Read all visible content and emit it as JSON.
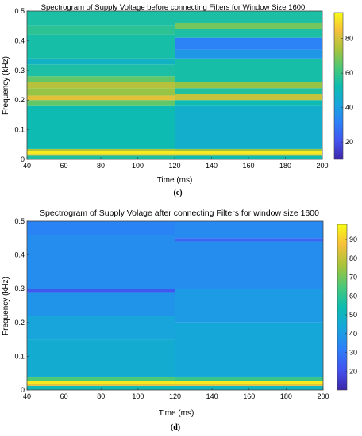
{
  "chart_data": [
    {
      "type": "heatmap",
      "panel_label": "(c)",
      "title": "Spectrogram of Supply Voltage before connecting Filters for Window Size 1600",
      "xlabel": "Time (ms)",
      "ylabel": "Frequency (kHz)",
      "xlim": [
        40,
        200
      ],
      "ylim": [
        0,
        0.5
      ],
      "xticks": [
        "40",
        "60",
        "80",
        "100",
        "120",
        "140",
        "160",
        "180",
        "200"
      ],
      "yticks": [
        "0",
        "0.1",
        "0.2",
        "0.3",
        "0.4",
        "0.5"
      ],
      "colorbar": {
        "ticks": [
          "20",
          "40",
          "60",
          "80"
        ],
        "range": [
          10,
          95
        ]
      },
      "colormap": "parula",
      "segments": [
        {
          "time_range": [
            40,
            120
          ],
          "bands": [
            {
              "f": [
                0.0,
                0.012
              ],
              "v": 55
            },
            {
              "f": [
                0.012,
                0.018
              ],
              "v": 78
            },
            {
              "f": [
                0.018,
                0.027
              ],
              "v": 92
            },
            {
              "f": [
                0.027,
                0.035
              ],
              "v": 75
            },
            {
              "f": [
                0.035,
                0.18
              ],
              "v": 52
            },
            {
              "f": [
                0.18,
                0.2
              ],
              "v": 66
            },
            {
              "f": [
                0.2,
                0.215
              ],
              "v": 82
            },
            {
              "f": [
                0.215,
                0.24
              ],
              "v": 72
            },
            {
              "f": [
                0.24,
                0.26
              ],
              "v": 76
            },
            {
              "f": [
                0.26,
                0.28
              ],
              "v": 66
            },
            {
              "f": [
                0.28,
                0.32
              ],
              "v": 55
            },
            {
              "f": [
                0.32,
                0.34
              ],
              "v": 48
            },
            {
              "f": [
                0.34,
                0.42
              ],
              "v": 54
            },
            {
              "f": [
                0.42,
                0.45
              ],
              "v": 58
            },
            {
              "f": [
                0.45,
                0.5
              ],
              "v": 55
            }
          ]
        },
        {
          "time_range": [
            120,
            200
          ],
          "bands": [
            {
              "f": [
                0.0,
                0.012
              ],
              "v": 52
            },
            {
              "f": [
                0.012,
                0.018
              ],
              "v": 78
            },
            {
              "f": [
                0.018,
                0.027
              ],
              "v": 92
            },
            {
              "f": [
                0.027,
                0.035
              ],
              "v": 72
            },
            {
              "f": [
                0.035,
                0.18
              ],
              "v": 46
            },
            {
              "f": [
                0.18,
                0.2
              ],
              "v": 52
            },
            {
              "f": [
                0.2,
                0.22
              ],
              "v": 78
            },
            {
              "f": [
                0.22,
                0.24
              ],
              "v": 56
            },
            {
              "f": [
                0.24,
                0.26
              ],
              "v": 72
            },
            {
              "f": [
                0.26,
                0.34
              ],
              "v": 54
            },
            {
              "f": [
                0.34,
                0.37
              ],
              "v": 38
            },
            {
              "f": [
                0.37,
                0.41
              ],
              "v": 32
            },
            {
              "f": [
                0.41,
                0.44
              ],
              "v": 55
            },
            {
              "f": [
                0.44,
                0.46
              ],
              "v": 68
            },
            {
              "f": [
                0.46,
                0.5
              ],
              "v": 55
            }
          ]
        }
      ]
    },
    {
      "type": "heatmap",
      "panel_label": "(d)",
      "title": "Spectrogram of Supply Volage after connecting Filters for window size 1600",
      "xlabel": "Time (ms)",
      "ylabel": "Frequency (kHz)",
      "xlim": [
        40,
        200
      ],
      "ylim": [
        0,
        0.5
      ],
      "xticks": [
        "40",
        "60",
        "80",
        "100",
        "120",
        "140",
        "160",
        "180",
        "200"
      ],
      "yticks": [
        "0",
        "0.1",
        "0.2",
        "0.3",
        "0.4",
        "0.5"
      ],
      "colorbar": {
        "ticks": [
          "20",
          "30",
          "40",
          "50",
          "60",
          "70",
          "80",
          "90"
        ],
        "range": [
          10,
          98
        ]
      },
      "colormap": "parula",
      "segments": [
        {
          "time_range": [
            40,
            120
          ],
          "bands": [
            {
              "f": [
                0.0,
                0.012
              ],
              "v": 52
            },
            {
              "f": [
                0.012,
                0.018
              ],
              "v": 85
            },
            {
              "f": [
                0.018,
                0.027
              ],
              "v": 95
            },
            {
              "f": [
                0.027,
                0.04
              ],
              "v": 65
            },
            {
              "f": [
                0.04,
                0.15
              ],
              "v": 46
            },
            {
              "f": [
                0.15,
                0.22
              ],
              "v": 43
            },
            {
              "f": [
                0.22,
                0.29
              ],
              "v": 38
            },
            {
              "f": [
                0.29,
                0.3
              ],
              "v": 22
            },
            {
              "f": [
                0.3,
                0.46
              ],
              "v": 36
            },
            {
              "f": [
                0.46,
                0.5
              ],
              "v": 33
            }
          ]
        },
        {
          "time_range": [
            120,
            200
          ],
          "bands": [
            {
              "f": [
                0.0,
                0.012
              ],
              "v": 50
            },
            {
              "f": [
                0.012,
                0.018
              ],
              "v": 85
            },
            {
              "f": [
                0.018,
                0.027
              ],
              "v": 95
            },
            {
              "f": [
                0.027,
                0.04
              ],
              "v": 62
            },
            {
              "f": [
                0.04,
                0.2
              ],
              "v": 44
            },
            {
              "f": [
                0.2,
                0.3
              ],
              "v": 40
            },
            {
              "f": [
                0.3,
                0.44
              ],
              "v": 36
            },
            {
              "f": [
                0.44,
                0.45
              ],
              "v": 25
            },
            {
              "f": [
                0.45,
                0.5
              ],
              "v": 35
            }
          ]
        }
      ]
    }
  ]
}
